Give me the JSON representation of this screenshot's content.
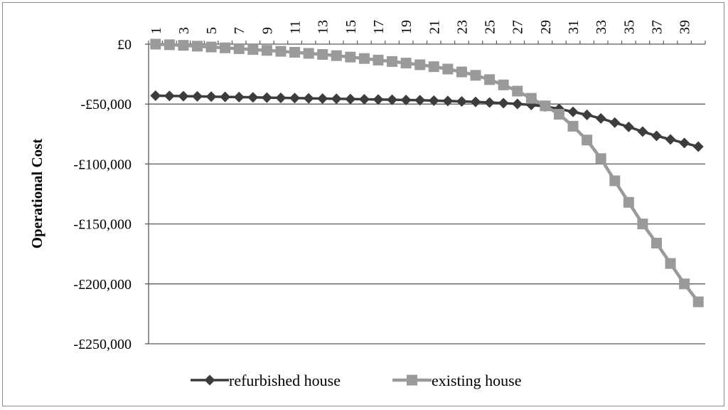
{
  "chart_data": {
    "type": "line",
    "title": "",
    "xlabel": "",
    "ylabel": "Operational Cost",
    "x": [
      1,
      2,
      3,
      4,
      5,
      6,
      7,
      8,
      9,
      10,
      11,
      12,
      13,
      14,
      15,
      16,
      17,
      18,
      19,
      20,
      21,
      22,
      23,
      24,
      25,
      26,
      27,
      28,
      29,
      30,
      31,
      32,
      33,
      34,
      35,
      36,
      37,
      38,
      39,
      40
    ],
    "x_tick_labels": [
      "1",
      "3",
      "5",
      "7",
      "9",
      "11",
      "13",
      "15",
      "17",
      "19",
      "21",
      "23",
      "25",
      "27",
      "29",
      "31",
      "33",
      "35",
      "37",
      "39"
    ],
    "y_tick_labels": [
      "£0",
      "-£50,000",
      "-£100,000",
      "-£150,000",
      "-£200,000",
      "-£250,000"
    ],
    "y_ticks": [
      0,
      -50000,
      -100000,
      -150000,
      -200000,
      -250000
    ],
    "ylim": [
      -250000,
      0
    ],
    "xlim": [
      1,
      40
    ],
    "x_axis_position": "top",
    "grid": "horizontal",
    "legend_position": "bottom",
    "series": [
      {
        "name": "refurbished house",
        "marker": "diamond",
        "color": "#3c3c3c",
        "values": [
          -43000,
          -43200,
          -43400,
          -43600,
          -43800,
          -44000,
          -44200,
          -44400,
          -44600,
          -44800,
          -45000,
          -45200,
          -45400,
          -45600,
          -45800,
          -46000,
          -46200,
          -46400,
          -46600,
          -46800,
          -47100,
          -47400,
          -47800,
          -48200,
          -48700,
          -49200,
          -49900,
          -50700,
          -52000,
          -54000,
          -56500,
          -59000,
          -62000,
          -65500,
          -69000,
          -73000,
          -76500,
          -79500,
          -82500,
          -85500
        ]
      },
      {
        "name": "existing house",
        "marker": "square",
        "color": "#9a9a9a",
        "values": [
          0,
          -500,
          -1000,
          -1700,
          -2400,
          -3100,
          -3800,
          -4500,
          -5200,
          -6000,
          -6800,
          -7700,
          -8600,
          -9600,
          -10800,
          -12000,
          -13300,
          -14500,
          -15800,
          -17200,
          -18800,
          -20800,
          -23200,
          -26000,
          -29600,
          -34000,
          -39200,
          -45200,
          -51500,
          -58500,
          -68500,
          -80000,
          -95500,
          -114000,
          -132000,
          -150000,
          -166000,
          -183000,
          -200000,
          -215000
        ]
      }
    ]
  }
}
